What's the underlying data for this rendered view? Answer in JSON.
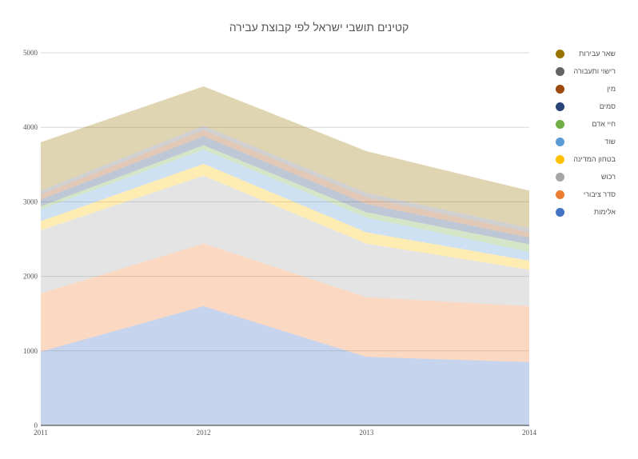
{
  "chart_data": {
    "type": "area",
    "stacked": true,
    "title": "קטינים תושבי ישראל לפי קבוצת עבירה",
    "xlabel": "",
    "ylabel": "",
    "x": [
      "2011",
      "2012",
      "2013",
      "2014"
    ],
    "ylim": [
      0,
      5000
    ],
    "yticks": [
      0,
      1000,
      2000,
      3000,
      4000,
      5000
    ],
    "grid": true,
    "legend_position": "right",
    "series": [
      {
        "name": "אלימות",
        "color": "#4472c4",
        "values": [
          990,
          1600,
          920,
          850
        ]
      },
      {
        "name": "סדר ציבורי",
        "color": "#ed7d31",
        "values": [
          780,
          840,
          800,
          750
        ]
      },
      {
        "name": "רכוש",
        "color": "#a5a5a5",
        "values": [
          850,
          910,
          720,
          490
        ]
      },
      {
        "name": "בטחון המדינה",
        "color": "#ffc000",
        "values": [
          120,
          160,
          150,
          120
        ]
      },
      {
        "name": "שוד",
        "color": "#5b9bd5",
        "values": [
          160,
          190,
          200,
          120
        ]
      },
      {
        "name": "חיי אדם",
        "color": "#70ad47",
        "values": [
          40,
          60,
          70,
          100
        ]
      },
      {
        "name": "סמים",
        "color": "#264478",
        "values": [
          90,
          120,
          110,
          90
        ]
      },
      {
        "name": "מין",
        "color": "#9e480e",
        "values": [
          70,
          80,
          90,
          70
        ]
      },
      {
        "name": "רישוי ותעבורה",
        "color": "#636363",
        "values": [
          50,
          60,
          60,
          60
        ]
      },
      {
        "name": "שאר עבירות",
        "color": "#997300",
        "values": [
          650,
          530,
          560,
          500
        ]
      }
    ]
  }
}
